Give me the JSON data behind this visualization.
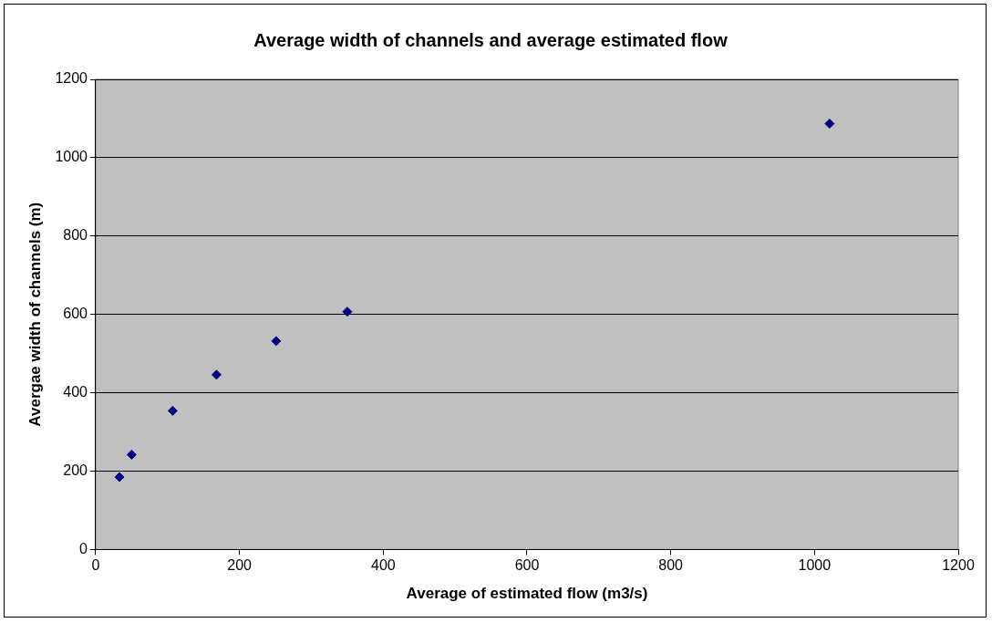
{
  "chart_data": {
    "type": "scatter",
    "title": "Average width of channels and average estimated flow",
    "xlabel": "Average of estimated flow (m3/s)",
    "ylabel": "Avergae width of channels (m)",
    "x": [
      33,
      50,
      107,
      168,
      251,
      350,
      1021
    ],
    "series": [
      {
        "color": "#000080",
        "values": [
          185,
          242,
          354,
          446,
          532,
          607,
          1087
        ]
      }
    ],
    "xlim": [
      0,
      1200
    ],
    "xticks": [
      0,
      200,
      400,
      600,
      800,
      1000,
      1200
    ],
    "ylim": [
      0,
      1200
    ],
    "yticks": [
      0,
      200,
      400,
      600,
      800,
      1000,
      1200
    ],
    "grid": "y",
    "marker": "diamond",
    "legend": false
  }
}
